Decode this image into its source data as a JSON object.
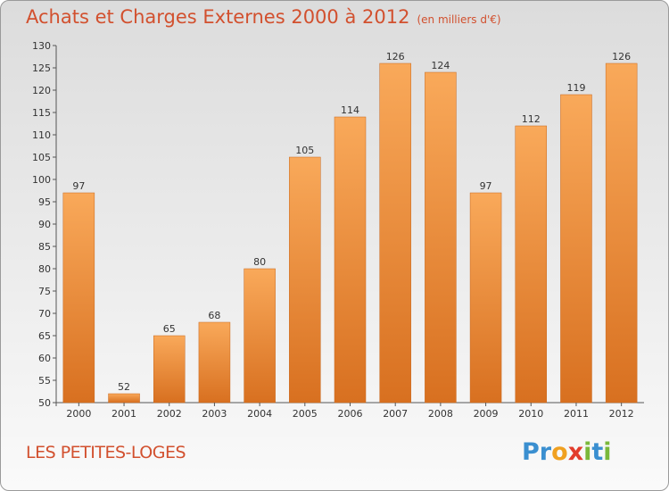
{
  "header": {
    "title": "Achats et Charges Externes 2000 à 2012",
    "subtitle": "(en milliers d'€)"
  },
  "footer": {
    "place": "LES PETITES-LOGES",
    "logo_letters": [
      {
        "char": "P",
        "color": "#3a8fd0"
      },
      {
        "char": "r",
        "color": "#3a8fd0"
      },
      {
        "char": "o",
        "color": "#f0a020"
      },
      {
        "char": "x",
        "color": "#e23c2c"
      },
      {
        "char": "i",
        "color": "#7ab83a"
      },
      {
        "char": "t",
        "color": "#3a8fd0"
      },
      {
        "char": "i",
        "color": "#7ab83a"
      }
    ]
  },
  "colors": {
    "bar_light": "#f9a95a",
    "bar_dark": "#d87020",
    "title": "#d2502e",
    "axis": "#555555",
    "grid": "#c8c8c8"
  },
  "chart_data": {
    "type": "bar",
    "title": "Achats et Charges Externes 2000 à 2012",
    "subtitle": "(en milliers d'€)",
    "xlabel": "",
    "ylabel": "",
    "ylim": [
      50,
      130
    ],
    "ytick_step": 5,
    "grid": false,
    "categories": [
      "2000",
      "2001",
      "2002",
      "2003",
      "2004",
      "2005",
      "2006",
      "2007",
      "2008",
      "2009",
      "2010",
      "2011",
      "2012"
    ],
    "values": [
      97,
      52,
      65,
      68,
      80,
      105,
      114,
      126,
      124,
      97,
      112,
      119,
      126
    ],
    "yticks": [
      "50",
      "55",
      "60",
      "65",
      "70",
      "75",
      "80",
      "85",
      "90",
      "95",
      "100",
      "105",
      "110",
      "115",
      "120",
      "125",
      "130"
    ]
  }
}
